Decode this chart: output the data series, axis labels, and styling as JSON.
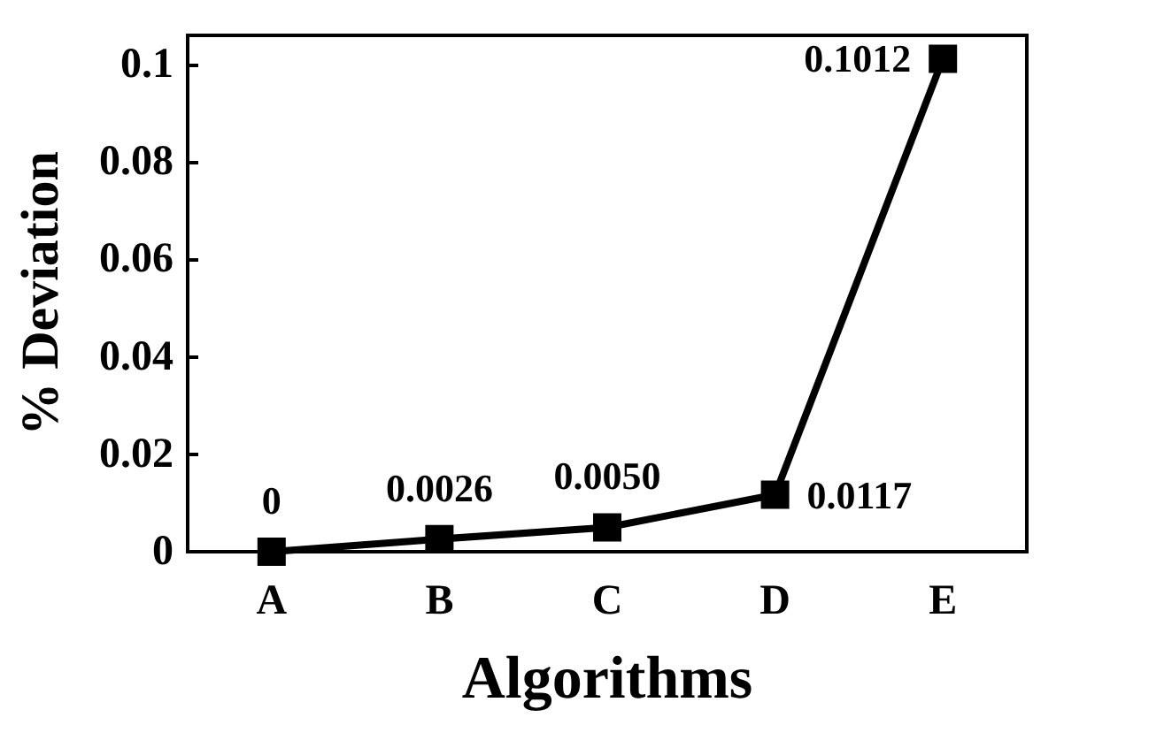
{
  "chart_data": {
    "type": "line",
    "xlabel": "Algorithms",
    "ylabel": "% Deviation",
    "categories": [
      "A",
      "B",
      "C",
      "D",
      "E"
    ],
    "values": [
      0,
      0.0026,
      0.005,
      0.0117,
      0.1012
    ],
    "value_labels": [
      "0",
      "0.0026",
      "0.0050",
      "0.0117",
      "0.1012"
    ],
    "color": "#000000",
    "marker": "square",
    "line_style": "solid",
    "ylim": [
      0,
      0.106
    ],
    "yticks": [
      0,
      0.02,
      0.04,
      0.06,
      0.08,
      0.1
    ],
    "grid": false
  }
}
